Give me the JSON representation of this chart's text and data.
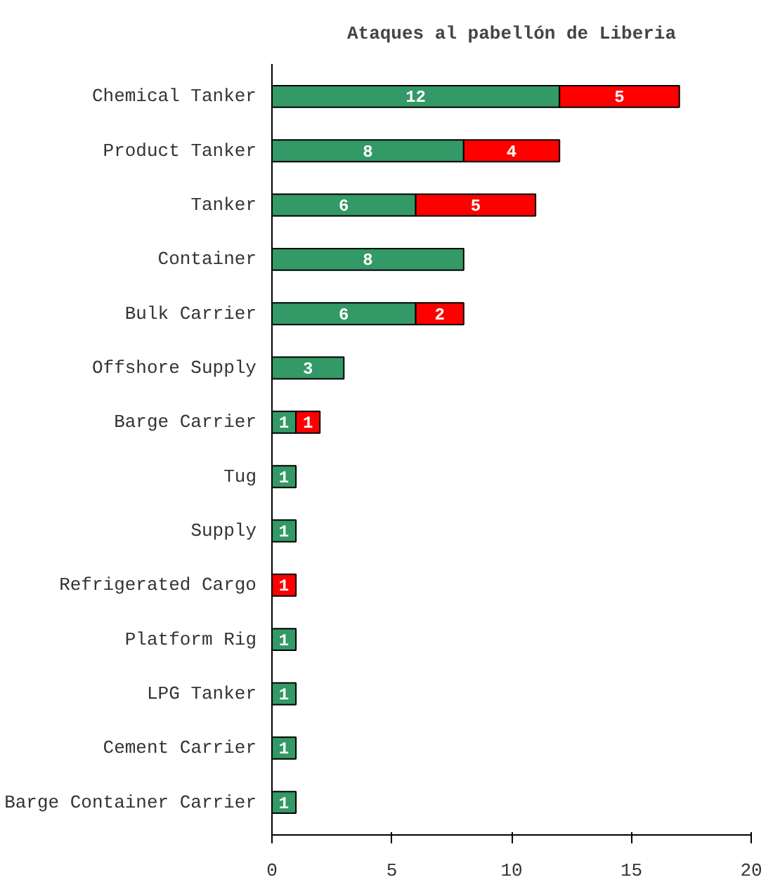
{
  "chart_data": {
    "type": "bar",
    "orientation": "horizontal",
    "stacked": true,
    "title": "Ataques al pabellón de Liberia",
    "categories": [
      "Chemical Tanker",
      "Product Tanker",
      "Tanker",
      "Container",
      "Bulk Carrier",
      "Offshore Supply",
      "Barge Carrier",
      "Tug",
      "Supply",
      "Refrigerated Cargo",
      "Platform Rig",
      "LPG Tanker",
      "Cement Carrier",
      "Barge Container Carrier"
    ],
    "series": [
      {
        "color": "#339966",
        "values": [
          12,
          8,
          6,
          8,
          6,
          3,
          1,
          1,
          1,
          null,
          1,
          1,
          1,
          1
        ]
      },
      {
        "color": "#ff0000",
        "values": [
          5,
          4,
          5,
          null,
          2,
          null,
          1,
          null,
          null,
          1,
          null,
          null,
          null,
          null
        ]
      }
    ],
    "xlim": [
      0,
      20
    ],
    "xticks": [
      0,
      5,
      10,
      15,
      20
    ],
    "grid": false,
    "data_labels": true
  }
}
